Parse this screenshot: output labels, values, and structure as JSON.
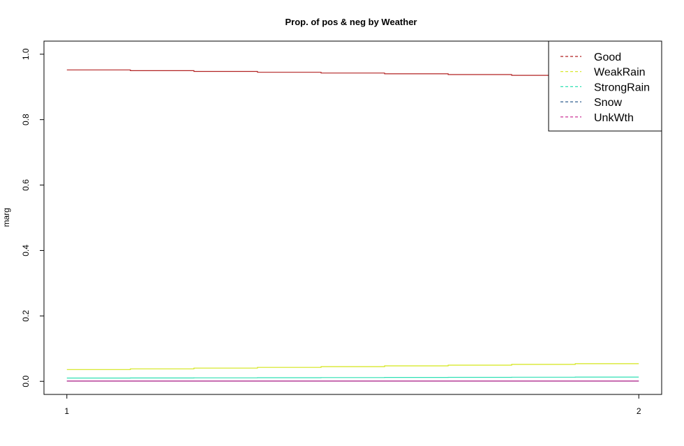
{
  "chart_data": {
    "type": "line",
    "title": "Prop. of pos & neg by Weather",
    "xlabel": "",
    "ylabel": "marg",
    "x": [
      1,
      2
    ],
    "xticks": [
      "1",
      "2"
    ],
    "ylim": [
      -0.04,
      1.04
    ],
    "yticks": [
      "0.0",
      "0.2",
      "0.4",
      "0.6",
      "0.8",
      "1.0"
    ],
    "legend_position": "top-right",
    "grid": false,
    "series": [
      {
        "name": "Good",
        "values": [
          0.952,
          0.933
        ],
        "color": "#b22222"
      },
      {
        "name": "WeakRain",
        "values": [
          0.036,
          0.054
        ],
        "color": "#d4e619"
      },
      {
        "name": "StrongRain",
        "values": [
          0.01,
          0.013
        ],
        "color": "#2ee0b4"
      },
      {
        "name": "Snow",
        "values": [
          0.001,
          0.001
        ],
        "color": "#2f5f8f"
      },
      {
        "name": "UnkWth",
        "values": [
          0.001,
          0.001
        ],
        "color": "#c51b8a"
      }
    ]
  }
}
